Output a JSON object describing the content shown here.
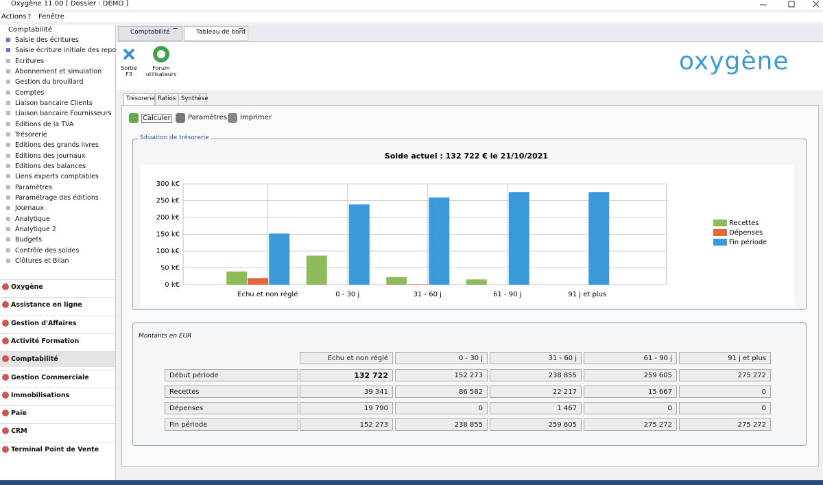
{
  "window": {
    "title": "Oxygène 11.00 [ Dossier : DEMO ]"
  },
  "menu": [
    "Actions",
    "?",
    "Fenêtre"
  ],
  "sidebar": {
    "root": "Comptabilité",
    "items": [
      "Saisie des écritures",
      "Saisie écriture initiale des repor",
      "Ecritures",
      "Abonnement et simulation",
      "Gestion du brouillard",
      "Comptes",
      "Liaison bancaire Clients",
      "Liaison bancaire Fournisseurs",
      "Editions de la TVA",
      "Trésorerie",
      "Editions des grands livres",
      "Editions des journaux",
      "Editions des balances",
      "Liens experts comptables",
      "Paramètres",
      "Paramétrage des éditions",
      "Journaux",
      "Analytique",
      "Analytique 2",
      "Budgets",
      "Contrôle des soldes",
      "Clôtures et Bilan"
    ],
    "modules": [
      "Oxygène",
      "Assistance en ligne",
      "Gestion d'Affaires",
      "Activité Formation",
      "Comptabilité",
      "Gestion Commerciale",
      "Immobilisations",
      "Paie",
      "CRM",
      "Terminal Point de Vente"
    ]
  },
  "tabs": [
    "Comptabilité",
    "Tableau de bord"
  ],
  "toolbar": {
    "exit": [
      "Sortie",
      "F3"
    ],
    "forum": [
      "Forum",
      "utilisateurs"
    ]
  },
  "logo": "oxygène",
  "subtabs": [
    "Trésorerie",
    "Ratios",
    "Synthèse"
  ],
  "actions": [
    "Calculer",
    "Paramètres",
    "Imprimer"
  ],
  "chart_group": "Situation de trésorerie",
  "chart_data": {
    "type": "bar",
    "title": "Solde actuel : 132 722 €  le 21/10/2021",
    "categories": [
      "Echu et non réglé",
      "0 - 30 j",
      "31 - 60 j",
      "61 - 90 j",
      "91 j et plus"
    ],
    "series": [
      {
        "name": "Recettes",
        "color": "#8dbb5a",
        "values": [
          39.341,
          86.582,
          22.217,
          15.667,
          0
        ]
      },
      {
        "name": "Dépenses",
        "color": "#e0683a",
        "values": [
          19.79,
          0,
          1.467,
          0,
          0
        ]
      },
      {
        "name": "Fin période",
        "color": "#3a9ad9",
        "values": [
          152.273,
          238.855,
          259.605,
          275.272,
          275.272
        ]
      }
    ],
    "ylim": [
      0,
      300
    ],
    "yticks": [
      {
        "value": 0,
        "label": "0 k€"
      },
      {
        "value": 50,
        "label": "50 k€"
      },
      {
        "value": 100,
        "label": "100 k€"
      },
      {
        "value": 150,
        "label": "150 k€"
      },
      {
        "value": 200,
        "label": "200 k€"
      },
      {
        "value": 250,
        "label": "250 k€"
      },
      {
        "value": 300,
        "label": "300 k€"
      }
    ],
    "grid": true,
    "legend": "right"
  },
  "table": {
    "caption": "Montants en EUR",
    "header": [
      "Echu et non réglé",
      "0 - 30 j",
      "31 - 60 j",
      "61 - 90 j",
      "91 j et plus"
    ],
    "rows": [
      [
        "Début période",
        "132 722",
        "152 273",
        "238 855",
        "259 605",
        "275 272"
      ],
      [
        "Recettes",
        "39 341",
        "86 582",
        "22 217",
        "15 667",
        "0"
      ],
      [
        "Dépenses",
        "19 790",
        "0",
        "1 467",
        "0",
        "0"
      ],
      [
        "Fin période",
        "152 273",
        "238 855",
        "259 605",
        "275 272",
        "275 272"
      ]
    ]
  }
}
